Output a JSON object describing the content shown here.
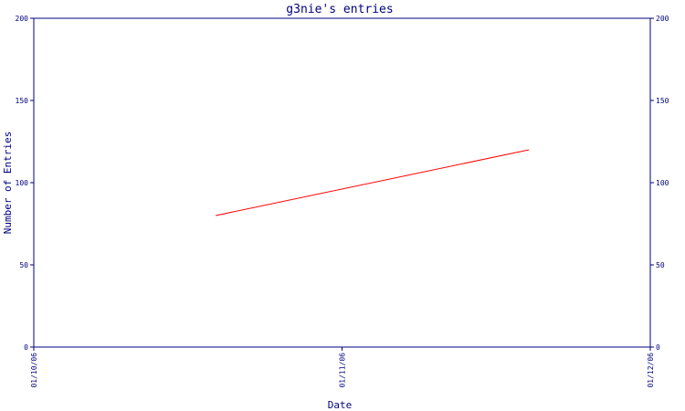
{
  "chart_data": {
    "type": "line",
    "title": "g3nie's entries",
    "xlabel": "Date",
    "ylabel": "Number of Entries",
    "x_ticks": [
      "01/10/06",
      "01/11/06",
      "01/12/06"
    ],
    "y_ticks": [
      "0",
      "50",
      "100",
      "150",
      "200"
    ],
    "ylim": [
      0,
      200
    ],
    "xlim": [
      "2006-10-01",
      "2006-12-01"
    ],
    "grid": false,
    "series": [
      {
        "x": [
          "2006-10-19",
          "2006-11-19"
        ],
        "y": [
          80,
          120
        ]
      }
    ],
    "colors": {
      "axis": "#000080",
      "line": "#ff0000",
      "text": "#000080"
    }
  }
}
